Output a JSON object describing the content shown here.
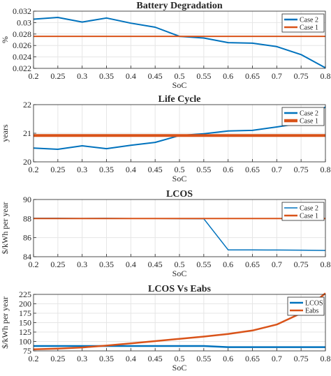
{
  "chart_data": [
    {
      "type": "line",
      "title": "Battery Degradation",
      "xlabel": "SoC",
      "ylabel": "%",
      "xlim": [
        0.2,
        0.8
      ],
      "ylim": [
        0.022,
        0.032
      ],
      "x_ticks": [
        "0.2",
        "0.25",
        "0.3",
        "0.35",
        "0.4",
        "0.45",
        "0.5",
        "0.55",
        "0.6",
        "0.65",
        "0.7",
        "0.75",
        "0.8"
      ],
      "y_ticks": [
        "0.022",
        "0.024",
        "0.026",
        "0.028",
        "0.03",
        "0.032"
      ],
      "grid": true,
      "legend_position": "top-right",
      "series": [
        {
          "name": "Case 2",
          "color": "#0072BD",
          "x": [
            0.2,
            0.25,
            0.3,
            0.35,
            0.4,
            0.45,
            0.5,
            0.55,
            0.6,
            0.65,
            0.7,
            0.75,
            0.8
          ],
          "y": [
            0.0306,
            0.0309,
            0.0301,
            0.0308,
            0.0299,
            0.0292,
            0.0276,
            0.0273,
            0.0265,
            0.0264,
            0.0258,
            0.0244,
            0.0221
          ]
        },
        {
          "name": "Case 1",
          "color": "#D95319",
          "x": [
            0.2,
            0.8
          ],
          "y": [
            0.0276,
            0.0276
          ]
        }
      ]
    },
    {
      "type": "line",
      "title": "Life Cycle",
      "xlabel": "SoC",
      "ylabel": "years",
      "xlim": [
        0.2,
        0.8
      ],
      "ylim": [
        20,
        22
      ],
      "x_ticks": [
        "0.2",
        "0.25",
        "0.3",
        "0.35",
        "0.4",
        "0.45",
        "0.5",
        "0.55",
        "0.6",
        "0.65",
        "0.7",
        "0.75",
        "0.8"
      ],
      "y_ticks": [
        "20",
        "21",
        "22"
      ],
      "grid": true,
      "legend_position": "top-right",
      "series": [
        {
          "name": "Case 2",
          "color": "#0072BD",
          "x": [
            0.2,
            0.25,
            0.3,
            0.35,
            0.4,
            0.45,
            0.5,
            0.55,
            0.6,
            0.65,
            0.7,
            0.75,
            0.8
          ],
          "y": [
            20.48,
            20.44,
            20.56,
            20.46,
            20.58,
            20.68,
            20.92,
            20.98,
            21.08,
            21.1,
            21.22,
            21.35,
            21.92
          ]
        },
        {
          "name": "Case 1",
          "color": "#D95319",
          "x": [
            0.2,
            0.8
          ],
          "y": [
            20.92,
            20.92
          ]
        }
      ]
    },
    {
      "type": "line",
      "title": "LCOS",
      "xlabel": "SoC",
      "ylabel": "$/kWh per year",
      "xlim": [
        0.2,
        0.8
      ],
      "ylim": [
        84,
        90
      ],
      "x_ticks": [
        "0.2",
        "0.25",
        "0.3",
        "0.35",
        "0.4",
        "0.45",
        "0.5",
        "0.55",
        "0.6",
        "0.65",
        "0.7",
        "0.75",
        "0.8"
      ],
      "y_ticks": [
        "84",
        "86",
        "88",
        "90"
      ],
      "grid": true,
      "legend_position": "top-right",
      "series": [
        {
          "name": "Case 2",
          "color": "#0072BD",
          "x": [
            0.2,
            0.25,
            0.3,
            0.35,
            0.4,
            0.45,
            0.5,
            0.55,
            0.6,
            0.65,
            0.7,
            0.75,
            0.8
          ],
          "y": [
            88.05,
            88.04,
            88.02,
            88.03,
            88.01,
            88.0,
            87.99,
            87.98,
            84.72,
            84.71,
            84.7,
            84.69,
            84.66
          ]
        },
        {
          "name": "Case 1",
          "color": "#D95319",
          "x": [
            0.2,
            0.8
          ],
          "y": [
            88.0,
            88.0
          ]
        }
      ]
    },
    {
      "type": "line",
      "title": "LCOS Vs Eabs",
      "xlabel": "SoC",
      "ylabel": "$/kWh per year",
      "xlim": [
        0.2,
        0.8
      ],
      "ylim": [
        75,
        225
      ],
      "x_ticks": [
        "0.2",
        "0.25",
        "0.3",
        "0.35",
        "0.4",
        "0.45",
        "0.5",
        "0.55",
        "0.6",
        "0.65",
        "0.7",
        "0.75",
        "0.8"
      ],
      "y_ticks": [
        "75",
        "100",
        "125",
        "150",
        "175",
        "200",
        "225"
      ],
      "grid": true,
      "legend_position": "top-right",
      "series": [
        {
          "name": "LCOS",
          "color": "#0072BD",
          "x": [
            0.2,
            0.25,
            0.3,
            0.35,
            0.4,
            0.45,
            0.5,
            0.55,
            0.6,
            0.65,
            0.7,
            0.75,
            0.8
          ],
          "y": [
            88,
            88,
            88,
            88,
            88,
            88,
            88,
            88,
            85,
            85,
            85,
            85,
            85
          ]
        },
        {
          "name": "Eabs",
          "color": "#D95319",
          "x": [
            0.2,
            0.25,
            0.3,
            0.35,
            0.4,
            0.45,
            0.5,
            0.55,
            0.6,
            0.65,
            0.7,
            0.75,
            0.8
          ],
          "y": [
            79,
            81,
            84,
            89,
            95,
            101,
            107,
            113,
            120,
            129,
            145,
            175,
            228
          ]
        }
      ]
    }
  ]
}
